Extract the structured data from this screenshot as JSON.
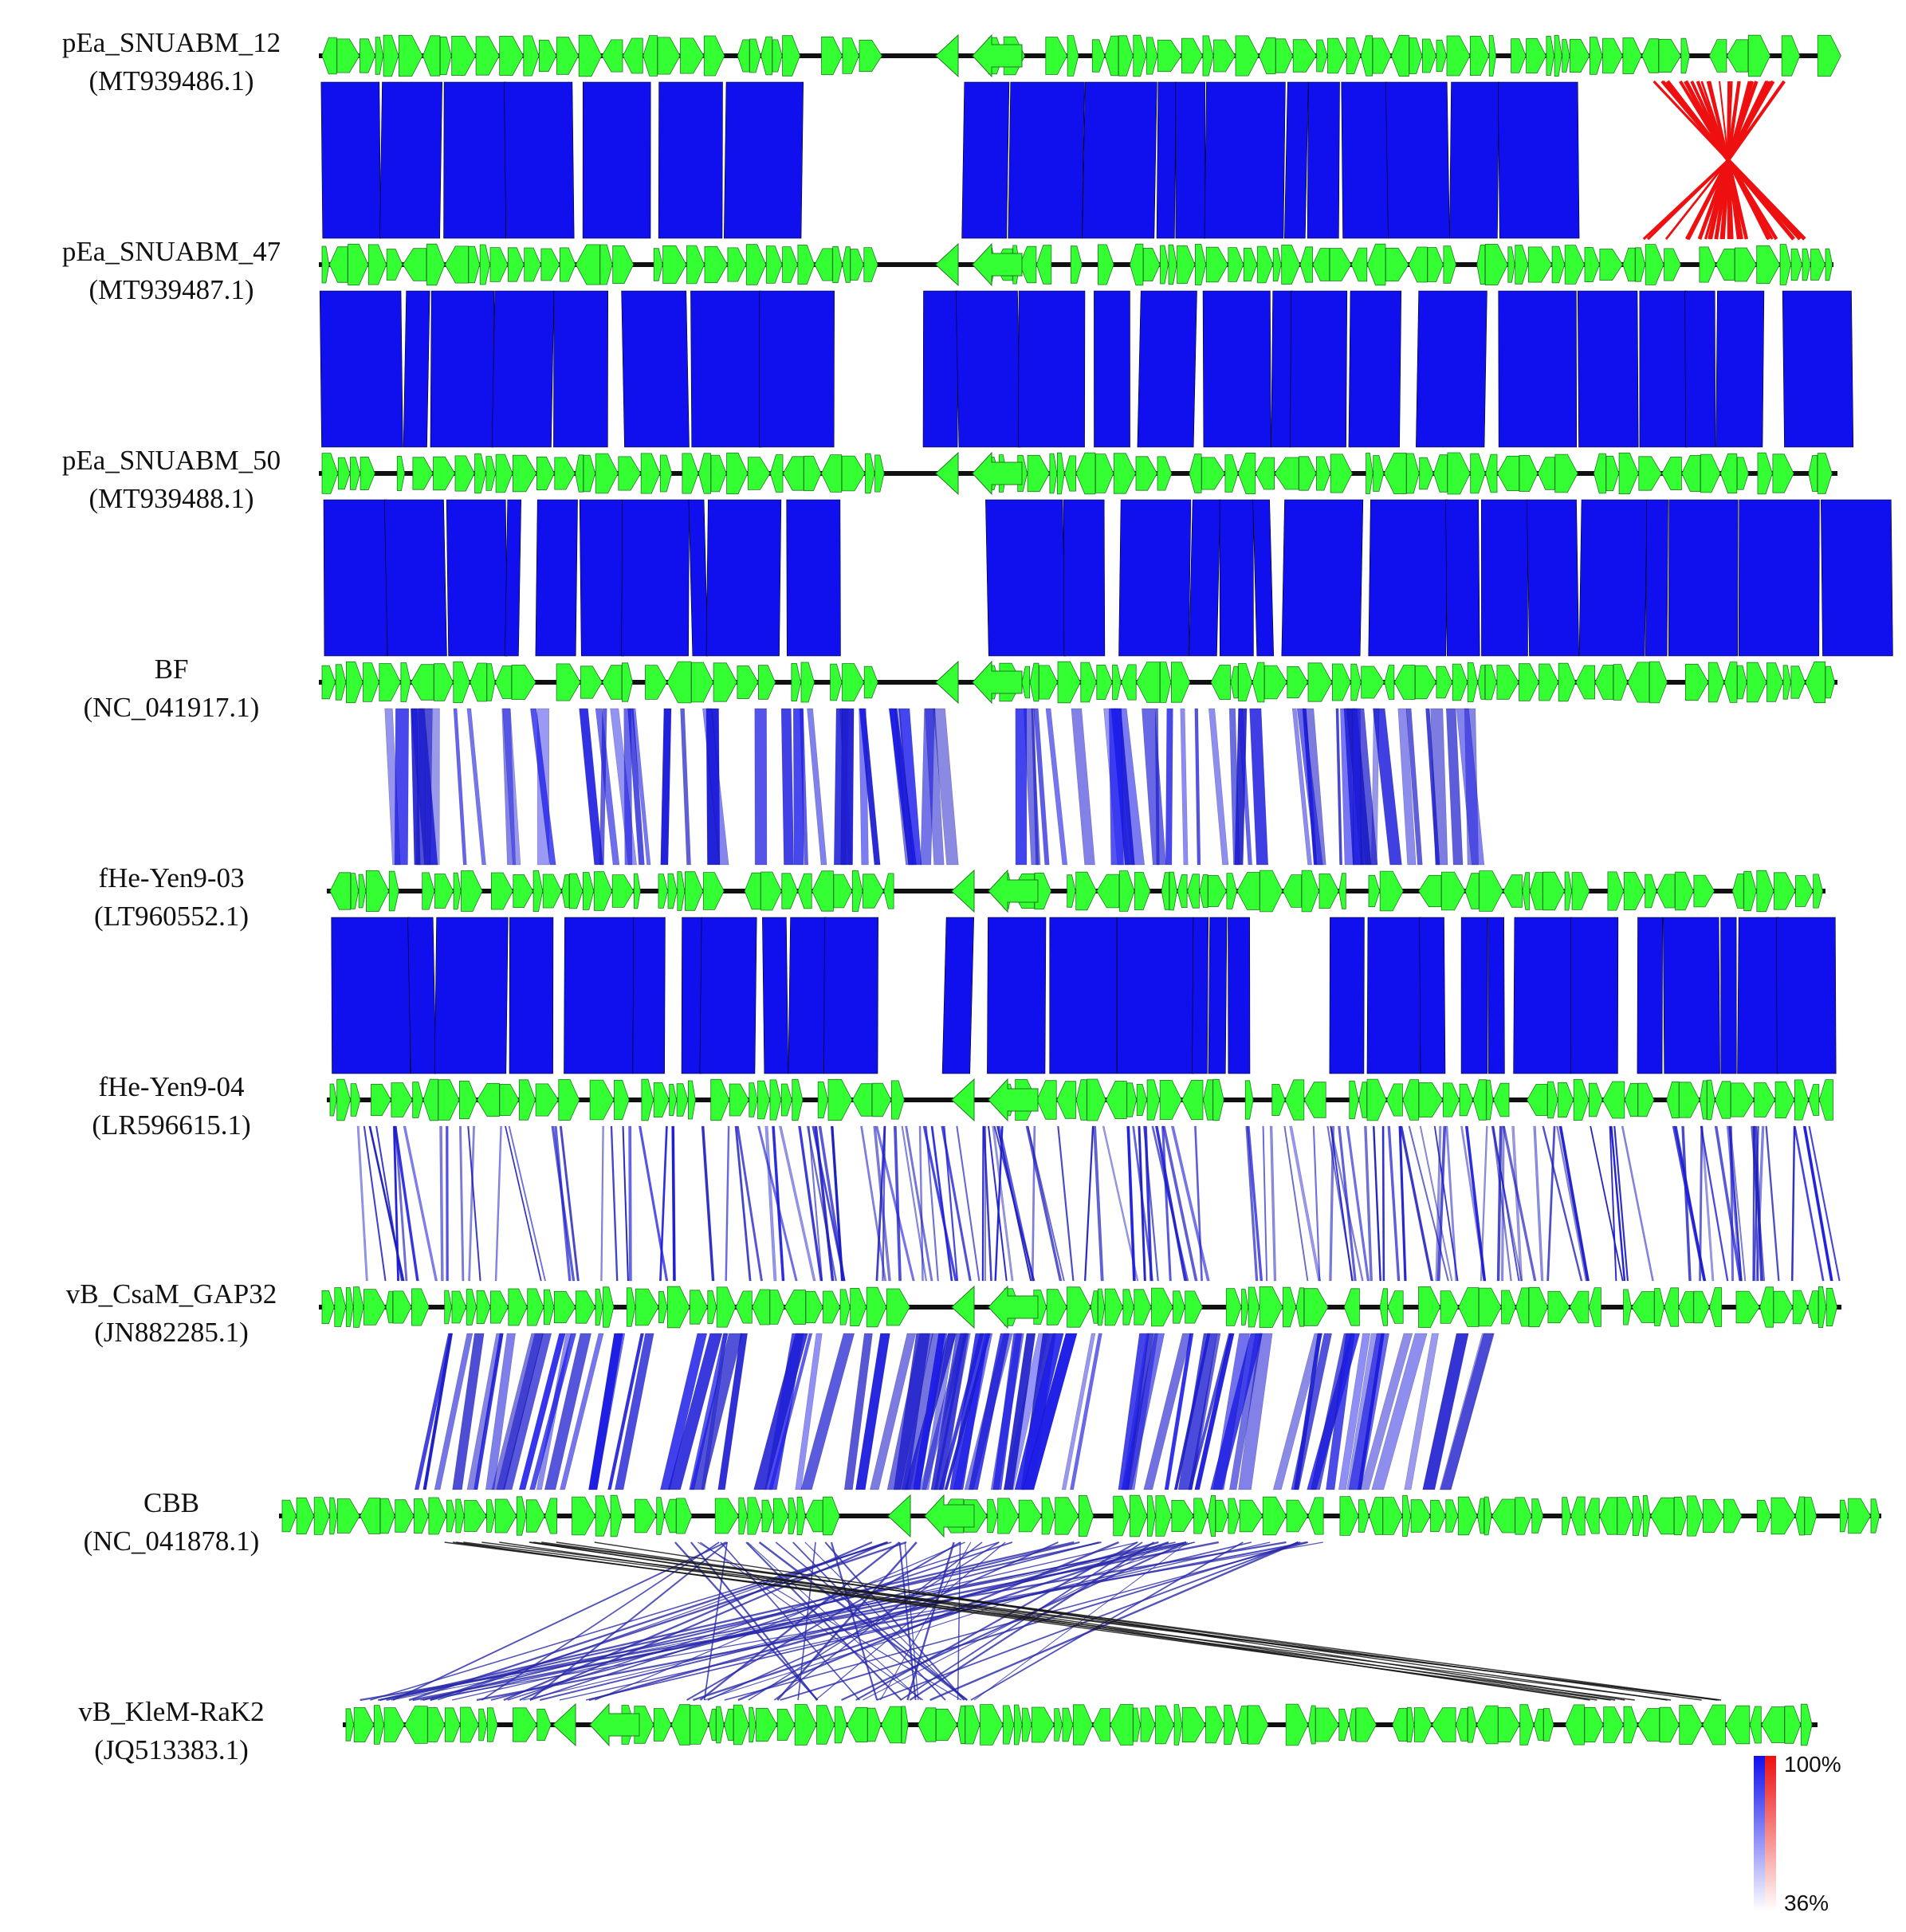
{
  "figure": {
    "genomes": [
      {
        "name": "pEa_SNUABM_12",
        "accession": "(MT939486.1)"
      },
      {
        "name": "pEa_SNUABM_47",
        "accession": "(MT939487.1)"
      },
      {
        "name": "pEa_SNUABM_50",
        "accession": "(MT939488.1)"
      },
      {
        "name": "BF",
        "accession": "(NC_041917.1)"
      },
      {
        "name": "fHe-Yen9-03",
        "accession": "(LT960552.1)"
      },
      {
        "name": "fHe-Yen9-04",
        "accession": "(LR596615.1)"
      },
      {
        "name": "vB_CsaM_GAP32",
        "accession": "(JN882285.1)"
      },
      {
        "name": "CBB",
        "accession": "(NC_041878.1)"
      },
      {
        "name": "vB_KleM-RaK2",
        "accession": "(JQ513383.1)"
      }
    ],
    "comparisons": [
      {
        "pair": "pEa_SNUABM_12 vs pEa_SNUABM_47",
        "similarity": "high",
        "inversion": "end-region"
      },
      {
        "pair": "pEa_SNUABM_47 vs pEa_SNUABM_50",
        "similarity": "high"
      },
      {
        "pair": "pEa_SNUABM_50 vs BF",
        "similarity": "high"
      },
      {
        "pair": "BF vs fHe-Yen9-03",
        "similarity": "sparse"
      },
      {
        "pair": "fHe-Yen9-03 vs fHe-Yen9-04",
        "similarity": "high"
      },
      {
        "pair": "fHe-Yen9-04 vs vB_CsaM_GAP32",
        "similarity": "sparse"
      },
      {
        "pair": "vB_CsaM_GAP32 vs CBB",
        "similarity": "sparse"
      },
      {
        "pair": "CBB vs vB_KleM-RaK2",
        "similarity": "sparse"
      }
    ],
    "colors": {
      "gene": "#33ff33",
      "gene_outline": "#1e7a1e",
      "backbone": "#111111",
      "same_strand": "#1010ee",
      "inverted": "#ee1010"
    },
    "identity_scale": {
      "max_label": "100%",
      "min_label": "36%"
    }
  }
}
